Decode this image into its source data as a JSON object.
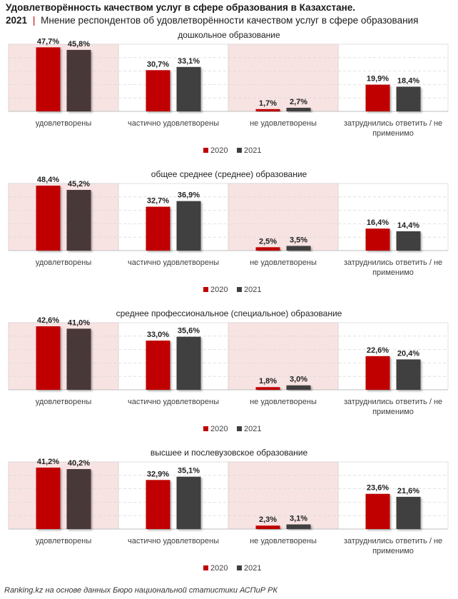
{
  "header": {
    "title": "Удовлетворённость качеством услуг в сфере образования в Казахстане.",
    "year": "2021",
    "separator": "|",
    "subtitle": "Мнение респондентов об удовлетворённости качеством услуг в сфере образования"
  },
  "colors": {
    "s2020": "#c00000",
    "s2021": "#3f3f3f",
    "s2021_hl": "#4a3838",
    "shade": "#f8e3e3",
    "shade_border": "#e8c4c4",
    "grid": "#d9d9d9"
  },
  "chart_data": [
    {
      "type": "bar",
      "title": "дошкольное образование",
      "categories": [
        "удовлетворены",
        "частично удовлетворены",
        "не удовлетворены",
        "затруднились ответить / не применимо"
      ],
      "series": [
        {
          "name": "2020",
          "values": [
            47.7,
            30.7,
            1.7,
            19.9
          ],
          "labels": [
            "47,7%",
            "30,7%",
            "1,7%",
            "19,9%"
          ]
        },
        {
          "name": "2021",
          "values": [
            45.8,
            33.1,
            2.7,
            18.4
          ],
          "labels": [
            "45,8%",
            "33,1%",
            "2,7%",
            "18,4%"
          ]
        }
      ],
      "ylim": [
        0,
        50
      ],
      "legend": "bottom"
    },
    {
      "type": "bar",
      "title": "общее среднее (среднее) образование",
      "categories": [
        "удовлетворены",
        "частично удовлетворены",
        "не удовлетворены",
        "затруднились ответить / не применимо"
      ],
      "series": [
        {
          "name": "2020",
          "values": [
            48.4,
            32.7,
            2.5,
            16.4
          ],
          "labels": [
            "48,4%",
            "32,7%",
            "2,5%",
            "16,4%"
          ]
        },
        {
          "name": "2021",
          "values": [
            45.2,
            36.9,
            3.5,
            14.4
          ],
          "labels": [
            "45,2%",
            "36,9%",
            "3,5%",
            "14,4%"
          ]
        }
      ],
      "ylim": [
        0,
        50
      ],
      "legend": "bottom"
    },
    {
      "type": "bar",
      "title": "среднее профессиональное (специальное) образование",
      "categories": [
        "удовлетворены",
        "частично удовлетворены",
        "не удовлетворены",
        "затруднились ответить / не применимо"
      ],
      "series": [
        {
          "name": "2020",
          "values": [
            42.6,
            33.0,
            1.8,
            22.6
          ],
          "labels": [
            "42,6%",
            "33,0%",
            "1,8%",
            "22,6%"
          ]
        },
        {
          "name": "2021",
          "values": [
            41.0,
            35.6,
            3.0,
            20.4
          ],
          "labels": [
            "41,0%",
            "35,6%",
            "3,0%",
            "20,4%"
          ]
        }
      ],
      "ylim": [
        0,
        45
      ],
      "legend": "bottom"
    },
    {
      "type": "bar",
      "title": "высшее и послевузовское образование",
      "categories": [
        "удовлетворены",
        "частично удовлетворены",
        "не удовлетворены",
        "затруднились ответить / не применимо"
      ],
      "series": [
        {
          "name": "2020",
          "values": [
            41.2,
            32.9,
            2.3,
            23.6
          ],
          "labels": [
            "41,2%",
            "32,9%",
            "2,3%",
            "23,6%"
          ]
        },
        {
          "name": "2021",
          "values": [
            40.2,
            35.1,
            3.1,
            21.6
          ],
          "labels": [
            "40,2%",
            "35,1%",
            "3,1%",
            "21,6%"
          ]
        }
      ],
      "ylim": [
        0,
        45
      ],
      "legend": "bottom"
    }
  ],
  "footer": {
    "source": "Ranking.kz на основе данных Бюро национальной статистики АСПиР РК"
  }
}
